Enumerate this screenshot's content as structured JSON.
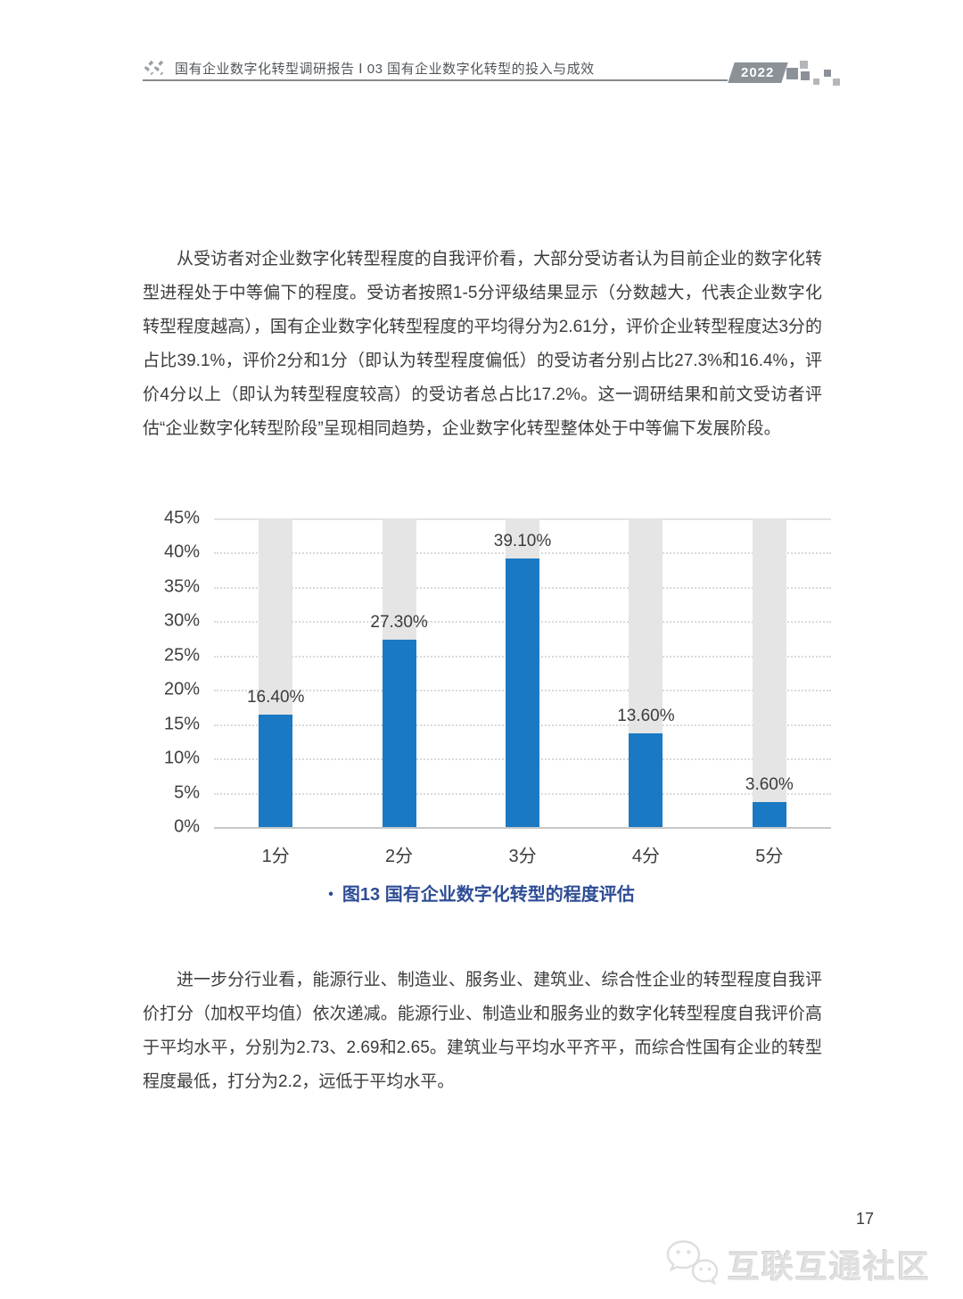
{
  "header": {
    "title": "国有企业数字化转型调研报告 Ⅰ 03 国有企业数字化转型的投入与成效",
    "year_badge": "2022"
  },
  "paragraphs": {
    "p1": "从受访者对企业数字化转型程度的自我评价看，大部分受访者认为目前企业的数字化转型进程处于中等偏下的程度。受访者按照1-5分评级结果显示（分数越大，代表企业数字化转型程度越高），国有企业数字化转型程度的平均得分为2.61分，评价企业转型程度达3分的占比39.1%，评价2分和1分（即认为转型程度偏低）的受访者分别占比27.3%和16.4%，评价4分以上（即认为转型程度较高）的受访者总占比17.2%。这一调研结果和前文受访者评估“企业数字化转型阶段”呈现相同趋势，企业数字化转型整体处于中等偏下发展阶段。",
    "p2": "进一步分行业看，能源行业、制造业、服务业、建筑业、综合性企业的转型程度自我评价打分（加权平均值）依次递减。能源行业、制造业和服务业的数字化转型程度自我评价高于平均水平，分别为2.73、2.69和2.65。建筑业与平均水平齐平，而综合性国有企业的转型程度最低，打分为2.2，远低于平均水平。"
  },
  "chart_data": {
    "type": "bar",
    "categories": [
      "1分",
      "2分",
      "3分",
      "4分",
      "5分"
    ],
    "values": [
      16.4,
      27.3,
      39.1,
      13.6,
      3.6
    ],
    "value_labels": [
      "16.40%",
      "27.30%",
      "39.10%",
      "13.60%",
      "3.60%"
    ],
    "title": "图13 国有企业数字化转型的程度评估",
    "xlabel": "",
    "ylabel": "",
    "ylim": [
      0,
      45
    ],
    "ytick_step": 5,
    "ytick_suffix": "%",
    "grid": "dotted horizontal",
    "legend": "none",
    "bar_color": "#1b79c3",
    "track_color": "#e5e5e5"
  },
  "caption": {
    "bullet": "•",
    "text": "图13  国有企业数字化转型的程度评估"
  },
  "footer": {
    "page_number": "17",
    "watermark_text": "互联互通社区"
  },
  "colors": {
    "bar_blue": "#1b79c3",
    "track_gray": "#e5e5e5",
    "caption_blue": "#2e4d96",
    "header_gray": "#85898d",
    "badge_gray": "#8b9197"
  }
}
